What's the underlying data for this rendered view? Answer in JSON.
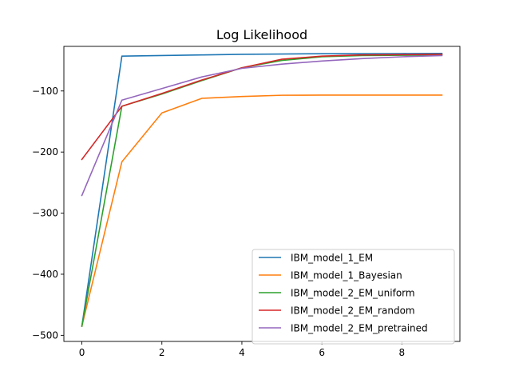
{
  "chart_data": {
    "type": "line",
    "title": "Log Likelihood",
    "xlabel": "",
    "ylabel": "",
    "xlim": [
      -0.45,
      9.45
    ],
    "ylim": [
      -510,
      -27
    ],
    "x": [
      0,
      1,
      2,
      3,
      4,
      5,
      6,
      7,
      8,
      9
    ],
    "xticks": [
      0,
      2,
      4,
      6,
      8
    ],
    "yticks": [
      -500,
      -400,
      -300,
      -200,
      -100
    ],
    "xtick_labels": [
      "0",
      "2",
      "4",
      "6",
      "8"
    ],
    "ytick_labels": [
      "−500",
      "−400",
      "−300",
      "−200",
      "−100"
    ],
    "grid": false,
    "legend_position": "lower-right",
    "series": [
      {
        "name": "IBM_model_1_EM",
        "color": "#1f77b4",
        "values": [
          -485,
          -43,
          -42,
          -41,
          -40,
          -39.5,
          -39,
          -39,
          -38.8,
          -38.5
        ]
      },
      {
        "name": "IBM_model_1_Bayesian",
        "color": "#ff7f0e",
        "values": [
          -485,
          -216,
          -136,
          -112,
          -109,
          -107,
          -106.8,
          -106.8,
          -106.8,
          -106.8
        ]
      },
      {
        "name": "IBM_model_2_EM_uniform",
        "color": "#2ca02c",
        "values": [
          -485,
          -125,
          -105,
          -83,
          -62,
          -50,
          -44,
          -42,
          -41.5,
          -41
        ]
      },
      {
        "name": "IBM_model_2_EM_random",
        "color": "#d62728",
        "values": [
          -212,
          -125,
          -104,
          -82,
          -62,
          -48,
          -43,
          -41,
          -40.5,
          -40
        ]
      },
      {
        "name": "IBM_model_2_EM_pretrained",
        "color": "#9467bd",
        "values": [
          -271,
          -115,
          -96,
          -77,
          -63,
          -56,
          -51,
          -47,
          -44,
          -42
        ]
      }
    ]
  }
}
